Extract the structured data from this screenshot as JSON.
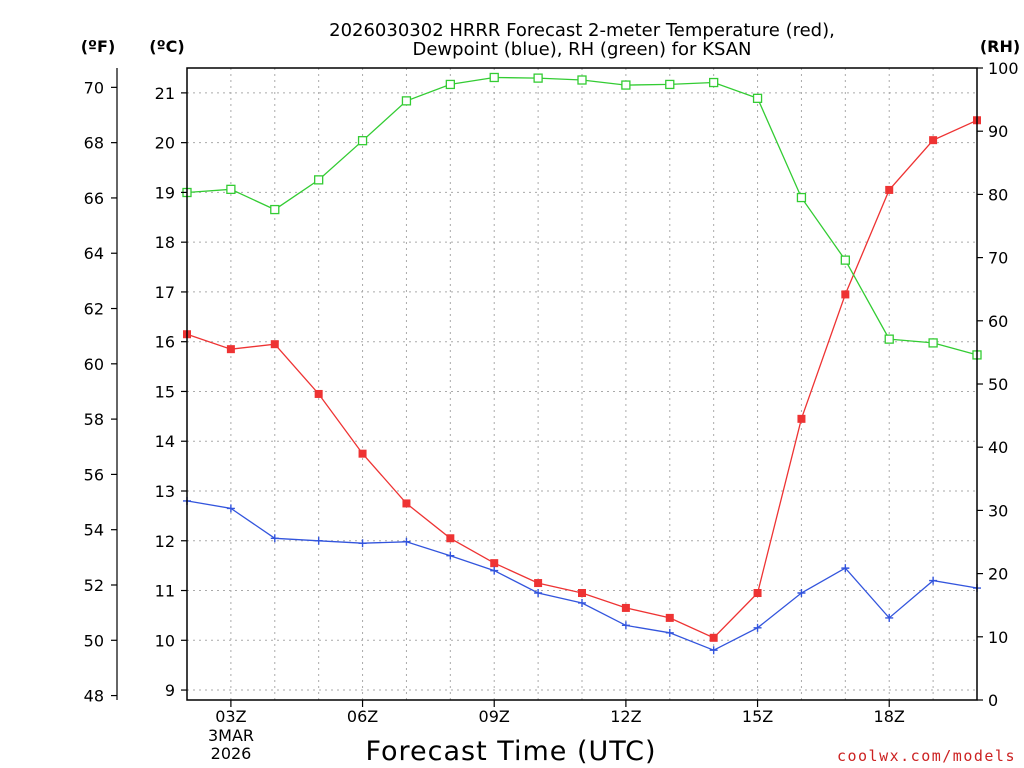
{
  "title_line1": "2026030302 HRRR Forecast 2-meter Temperature (red),",
  "title_line2": "Dewpoint (blue), RH (green) for KSAN",
  "unit_f": "(ºF)",
  "unit_c": "(ºC)",
  "unit_rh": "(RH)",
  "xlabel": "Forecast Time (UTC)",
  "date_line1": "3MAR",
  "date_line2": "2026",
  "credit": "coolwx.com/models",
  "colors": {
    "temperature": "#ee3333",
    "dewpoint": "#3355dd",
    "rh": "#33cc33",
    "credit": "#cc2222",
    "grid": "#aaaaaa"
  },
  "chart_data": {
    "type": "line",
    "x": [
      2,
      3,
      4,
      5,
      6,
      7,
      8,
      9,
      10,
      11,
      12,
      13,
      14,
      15,
      16,
      17,
      18,
      19,
      20
    ],
    "x_range": [
      2,
      20
    ],
    "x_ticks": [
      {
        "value": 3,
        "label": "03Z"
      },
      {
        "value": 6,
        "label": "06Z"
      },
      {
        "value": 9,
        "label": "09Z"
      },
      {
        "value": 12,
        "label": "12Z"
      },
      {
        "value": 15,
        "label": "15Z"
      },
      {
        "value": 18,
        "label": "18Z"
      }
    ],
    "celsius_axis": {
      "range": [
        8.8,
        21.5
      ],
      "ticks": [
        9,
        10,
        11,
        12,
        13,
        14,
        15,
        16,
        17,
        18,
        19,
        20,
        21
      ]
    },
    "fahrenheit_axis": {
      "ticks": [
        48,
        50,
        52,
        54,
        56,
        58,
        60,
        62,
        64,
        66,
        68,
        70
      ]
    },
    "rh_axis": {
      "range": [
        0,
        100
      ],
      "ticks": [
        0,
        10,
        20,
        30,
        40,
        50,
        60,
        70,
        80,
        90,
        100
      ]
    },
    "series": [
      {
        "name": "Temperature",
        "axis": "celsius",
        "marker": "filled-square",
        "values": [
          16.15,
          15.85,
          15.95,
          14.95,
          13.75,
          12.75,
          12.05,
          11.55,
          11.15,
          10.95,
          10.65,
          10.45,
          10.05,
          10.95,
          14.45,
          16.95,
          19.05,
          20.05,
          20.45
        ]
      },
      {
        "name": "Dewpoint",
        "axis": "celsius",
        "marker": "plus",
        "values": [
          12.8,
          12.65,
          12.05,
          12.0,
          11.95,
          11.98,
          11.7,
          11.4,
          10.95,
          10.75,
          10.3,
          10.15,
          9.8,
          10.25,
          10.95,
          11.45,
          10.45,
          11.2,
          11.05
        ]
      },
      {
        "name": "RH",
        "axis": "rh",
        "marker": "open-square",
        "values": [
          80.3,
          80.8,
          77.6,
          82.3,
          88.5,
          94.8,
          97.4,
          98.5,
          98.4,
          98.1,
          97.3,
          97.4,
          97.7,
          95.2,
          79.5,
          69.6,
          57.1,
          56.5,
          54.6
        ]
      }
    ]
  }
}
